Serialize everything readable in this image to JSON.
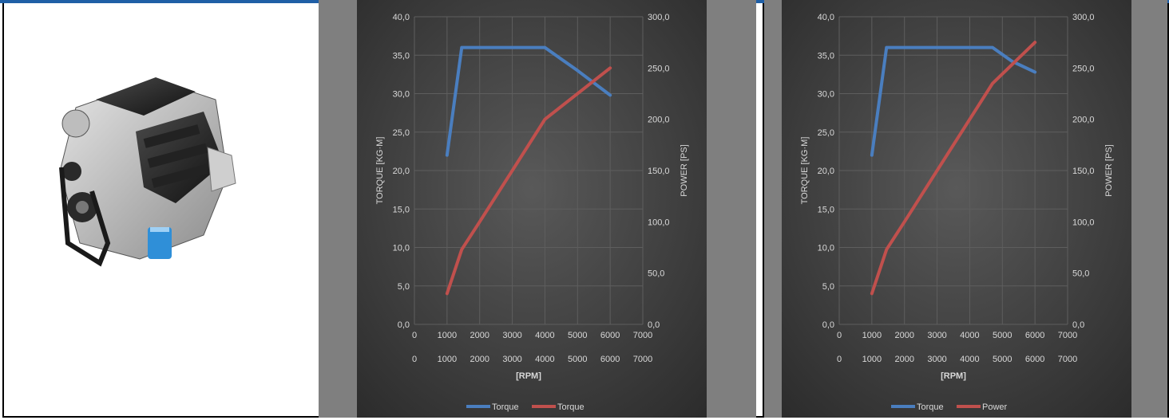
{
  "colors": {
    "torque_line": "#4a7ebf",
    "power_line": "#c0504d",
    "panel_bg": "#7f7f7f",
    "chart_bg_center": "#595959",
    "chart_bg_edge": "#2b2b2b",
    "grid": "#5e5e5e",
    "text": "#d9d9d9"
  },
  "engine_image": {
    "icon": "engine-icon"
  },
  "chart_data": [
    {
      "type": "line",
      "title": "",
      "xlabel": "[RPM]",
      "ylabel": "TORQUE [KG·M]",
      "y2label": "POWER [PS]",
      "xlim": [
        0,
        7000
      ],
      "ylim": [
        0,
        40
      ],
      "y2lim": [
        0,
        300
      ],
      "x_ticks": [
        "0",
        "1000",
        "2000",
        "3000",
        "4000",
        "5000",
        "6000",
        "7000"
      ],
      "x_ticks_secondary": [
        "0",
        "1000",
        "2000",
        "3000",
        "4000",
        "5000",
        "6000",
        "7000"
      ],
      "y_ticks": [
        "0,0",
        "5,0",
        "10,0",
        "15,0",
        "20,0",
        "25,0",
        "30,0",
        "35,0",
        "40,0"
      ],
      "y2_ticks": [
        "0,0",
        "50,0",
        "100,0",
        "150,0",
        "200,0",
        "250,0",
        "300,0"
      ],
      "grid": true,
      "legend": "bottom",
      "series": [
        {
          "name": "Torque",
          "axis": "left",
          "color": "#4a7ebf",
          "x": [
            1000,
            1450,
            4000,
            4500,
            5000,
            6000
          ],
          "y": [
            22.0,
            36.0,
            36.0,
            34.5,
            33.0,
            29.8
          ]
        },
        {
          "name": "Torque",
          "axis": "right",
          "color": "#c0504d",
          "x": [
            1000,
            1450,
            2000,
            4000,
            6000
          ],
          "y": [
            30,
            73,
            100,
            200,
            250
          ]
        }
      ]
    },
    {
      "type": "line",
      "title": "",
      "xlabel": "[RPM]",
      "ylabel": "TORQUE [KG·M]",
      "y2label": "POWER [PS]",
      "xlim": [
        0,
        7000
      ],
      "ylim": [
        0,
        40
      ],
      "y2lim": [
        0,
        300
      ],
      "x_ticks": [
        "0",
        "1000",
        "2000",
        "3000",
        "4000",
        "5000",
        "6000",
        "7000"
      ],
      "x_ticks_secondary": [
        "0",
        "1000",
        "2000",
        "3000",
        "4000",
        "5000",
        "6000",
        "7000"
      ],
      "y_ticks": [
        "0,0",
        "5,0",
        "10,0",
        "15,0",
        "20,0",
        "25,0",
        "30,0",
        "35,0",
        "40,0"
      ],
      "y2_ticks": [
        "0,0",
        "50,0",
        "100,0",
        "150,0",
        "200,0",
        "250,0",
        "300,0"
      ],
      "grid": true,
      "legend": "bottom",
      "series": [
        {
          "name": "Torque",
          "axis": "left",
          "color": "#4a7ebf",
          "x": [
            1000,
            1450,
            4700,
            5300,
            6000
          ],
          "y": [
            22.0,
            36.0,
            36.0,
            34.2,
            32.8
          ]
        },
        {
          "name": "Power",
          "axis": "right",
          "color": "#c0504d",
          "x": [
            1000,
            1450,
            2000,
            4700,
            6000
          ],
          "y": [
            30,
            73,
            100,
            235,
            275
          ]
        }
      ]
    }
  ]
}
